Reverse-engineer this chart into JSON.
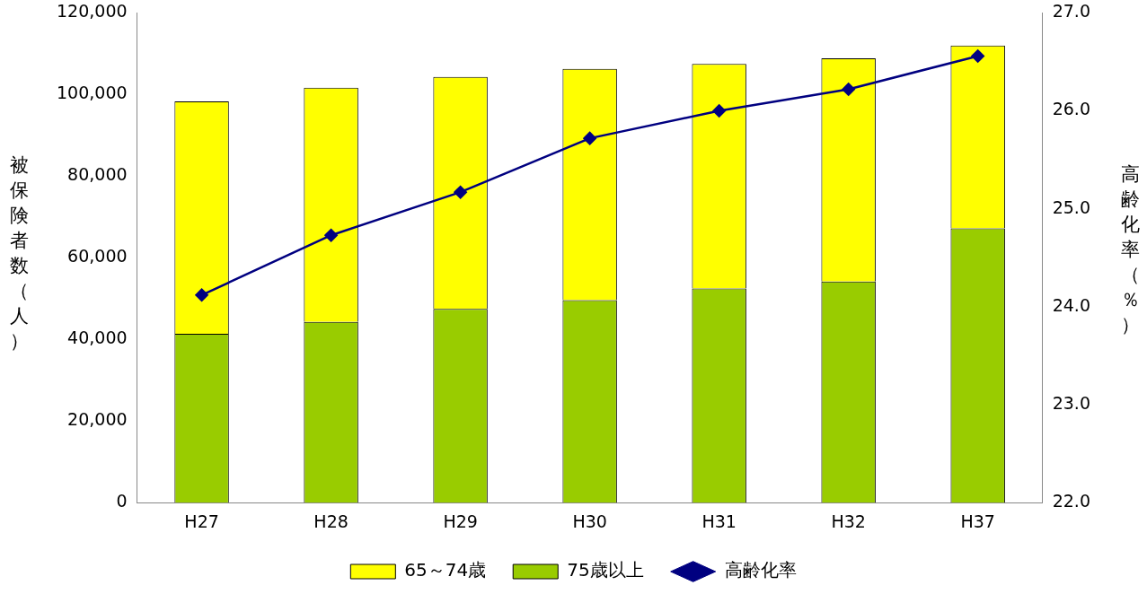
{
  "chart_data": {
    "type": "bar",
    "stacked": true,
    "ylabel": "被保険者数（人）",
    "y2label": "高齢化率（％）",
    "categories": [
      "H27",
      "H28",
      "H29",
      "H30",
      "H31",
      "H32",
      "H37"
    ],
    "series": [
      {
        "name": "75歳以上",
        "color": "#99cc00",
        "values": [
          41400,
          44300,
          47500,
          49600,
          52500,
          54200,
          67200
        ]
      },
      {
        "name": "65～74歳",
        "color": "#ffff00",
        "values": [
          56900,
          57400,
          56800,
          56700,
          55000,
          54700,
          44800
        ]
      },
      {
        "name": "高齢化率",
        "type": "line",
        "axis": "y2",
        "color": "#000080",
        "values": [
          24.12,
          24.73,
          25.17,
          25.72,
          26.0,
          26.22,
          26.56
        ]
      }
    ],
    "ylim": [
      0,
      120000
    ],
    "yticks": [
      {
        "value": 0,
        "label": "0"
      },
      {
        "value": 20000,
        "label": "20,000"
      },
      {
        "value": 40000,
        "label": "40,000"
      },
      {
        "value": 60000,
        "label": "60,000"
      },
      {
        "value": 80000,
        "label": "80,000"
      },
      {
        "value": 100000,
        "label": "100,000"
      },
      {
        "value": 120000,
        "label": "120,000"
      }
    ],
    "y2lim": [
      22,
      27
    ],
    "y2ticks": [
      {
        "value": 22,
        "label": "22.0"
      },
      {
        "value": 23,
        "label": "23.0"
      },
      {
        "value": 24,
        "label": "24.0"
      },
      {
        "value": 25,
        "label": "25.0"
      },
      {
        "value": 26,
        "label": "26.0"
      },
      {
        "value": 27,
        "label": "27.0"
      }
    ],
    "grid": false,
    "legend": "bottom",
    "marker": "diamond"
  }
}
